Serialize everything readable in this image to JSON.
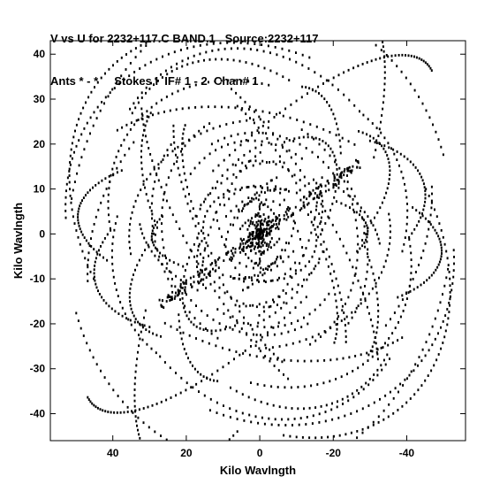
{
  "header": {
    "title_line": "V vs U for 2232+117.C BAND.1   Source:2232+117",
    "subtitle_line": "Ants * - *     Stokes I  IF# 1 - 2  Chan# 1"
  },
  "colors": {
    "background": "#ffffff",
    "points": "#000000",
    "axes": "#000000"
  },
  "chart_data": {
    "type": "scatter",
    "title": "V vs U for 2232+117.C BAND.1   Source:2232+117",
    "subtitle": "Ants * - *     Stokes I  IF# 1 - 2  Chan# 1",
    "xlabel": "Kilo Wavlngth",
    "ylabel": "Kilo Wavlngth",
    "xlim": [
      57,
      -56
    ],
    "ylim": [
      -46,
      43
    ],
    "x_reversed": true,
    "xticks": [
      40,
      20,
      0,
      -20,
      -40
    ],
    "yticks": [
      40,
      30,
      20,
      10,
      0,
      -10,
      -20,
      -30,
      -40
    ],
    "xtick_labels": [
      "40",
      "20",
      "0",
      "-20",
      "-40"
    ],
    "ytick_labels": [
      "40",
      "30",
      "20",
      "10",
      "0",
      "-10",
      "-20",
      "-30",
      "-40"
    ],
    "grid": false,
    "series": [
      {
        "marker": "dot",
        "color": "#000000",
        "sampling": "u-v coverage tracks",
        "points": [
          [
            0.2,
            0.2
          ],
          [
            -0.2,
            -0.2
          ],
          [
            0.4,
            0.8
          ],
          [
            -0.4,
            -0.8
          ],
          [
            3.0,
            9.5
          ],
          [
            -3.0,
            -9.5
          ],
          [
            2.0,
            6.0
          ],
          [
            -2.0,
            -6.0
          ],
          [
            10.0,
            5.0
          ],
          [
            -10.0,
            -5.0
          ],
          [
            15.0,
            9.0
          ],
          [
            -15.0,
            -9.0
          ],
          [
            24.0,
            16.0
          ],
          [
            -24.0,
            -16.0
          ],
          [
            34.0,
            37.0
          ],
          [
            -34.0,
            -37.0
          ],
          [
            50.0,
            5.0
          ],
          [
            -50.0,
            -5.0
          ],
          [
            55.0,
            2.0
          ],
          [
            -55.0,
            -2.0
          ],
          [
            33.0,
            -38.0
          ],
          [
            -33.0,
            38.0
          ],
          [
            2.0,
            41.0
          ],
          [
            -2.0,
            -41.0
          ]
        ]
      }
    ]
  }
}
